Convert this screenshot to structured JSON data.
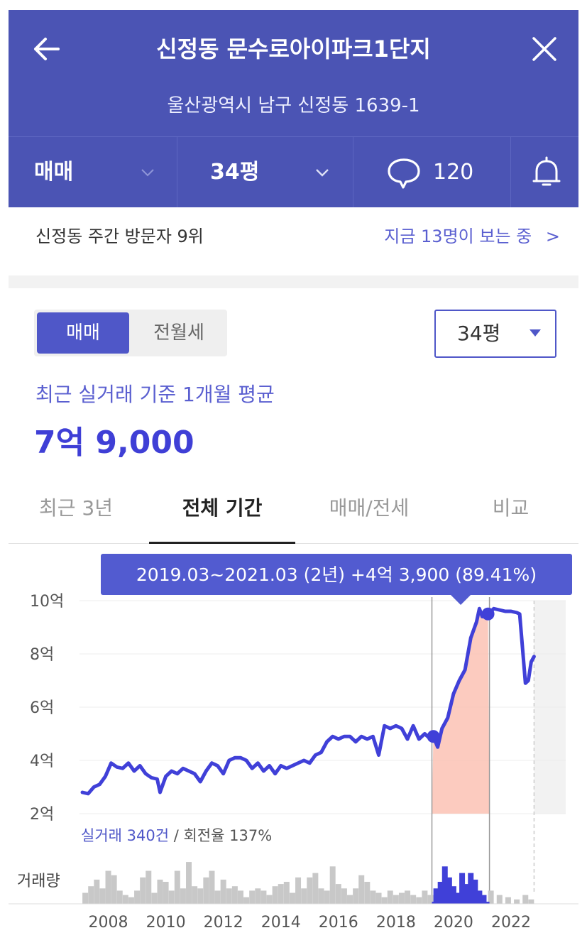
{
  "header": {
    "title": "신정동 문수로아이파크1단지",
    "address": "울산광역시 남구 신정동 1639-1",
    "bar": {
      "trade_type": "매매",
      "size": "34평",
      "comment_count": "120"
    }
  },
  "visitor": {
    "rank_text": "신정동 주간 방문자 9위",
    "watching_text": "지금 13명이 보는 중",
    "chevron": ">"
  },
  "controls": {
    "toggle_on": "매매",
    "toggle_off": "전월세",
    "dropdown_value": "34평"
  },
  "summary": {
    "label": "최근 실거래 기준 1개월 평균",
    "price": "7억 9,000"
  },
  "tabs": [
    {
      "label": "최근 3년",
      "active": false
    },
    {
      "label": "전체 기간",
      "active": true
    },
    {
      "label": "매매/전세",
      "active": false
    },
    {
      "label": "비교",
      "active": false
    }
  ],
  "colors": {
    "accent": "#4b54b4",
    "line": "#4040d8",
    "highlight": "#fbc2b4",
    "volume": "#c8c8c8",
    "volume_highlight": "#4040d8"
  },
  "chart_data": {
    "type": "line",
    "tooltip": "2019.03~2021.03 (2년)  +4억 3,900 (89.41%)",
    "y_ticks": [
      "10억",
      "8억",
      "6억",
      "4억",
      "2억"
    ],
    "y_tick_values": [
      10,
      8,
      6,
      4,
      2
    ],
    "x_ticks": [
      "2008",
      "2010",
      "2012",
      "2014",
      "2016",
      "2018",
      "2020",
      "2022"
    ],
    "x_tick_values": [
      2008,
      2010,
      2012,
      2014,
      2016,
      2018,
      2020,
      2022
    ],
    "ylim": [
      2,
      10
    ],
    "xlim": [
      2007.0,
      2023.9
    ],
    "grid": true,
    "summary_label": "실거래 340건",
    "summary_sep": " / 회전율 137%",
    "volume_label": "거래량",
    "highlight_range": [
      2019.25,
      2021.25
    ],
    "forecast_start": 2022.8,
    "series": [
      {
        "points": [
          [
            2007.1,
            2.8
          ],
          [
            2007.3,
            2.75
          ],
          [
            2007.5,
            3.0
          ],
          [
            2007.7,
            3.1
          ],
          [
            2007.9,
            3.4
          ],
          [
            2008.1,
            3.9
          ],
          [
            2008.3,
            3.75
          ],
          [
            2008.5,
            3.7
          ],
          [
            2008.7,
            3.9
          ],
          [
            2008.9,
            3.6
          ],
          [
            2009.1,
            3.8
          ],
          [
            2009.3,
            3.5
          ],
          [
            2009.5,
            3.35
          ],
          [
            2009.7,
            3.3
          ],
          [
            2009.8,
            2.8
          ],
          [
            2010.0,
            3.4
          ],
          [
            2010.2,
            3.6
          ],
          [
            2010.4,
            3.5
          ],
          [
            2010.6,
            3.7
          ],
          [
            2010.8,
            3.6
          ],
          [
            2011.0,
            3.5
          ],
          [
            2011.2,
            3.2
          ],
          [
            2011.4,
            3.6
          ],
          [
            2011.6,
            3.9
          ],
          [
            2011.8,
            3.8
          ],
          [
            2012.0,
            3.5
          ],
          [
            2012.2,
            4.0
          ],
          [
            2012.4,
            4.1
          ],
          [
            2012.6,
            4.1
          ],
          [
            2012.8,
            4.0
          ],
          [
            2013.0,
            3.7
          ],
          [
            2013.2,
            3.9
          ],
          [
            2013.4,
            3.6
          ],
          [
            2013.6,
            3.8
          ],
          [
            2013.8,
            3.5
          ],
          [
            2014.0,
            3.8
          ],
          [
            2014.2,
            3.7
          ],
          [
            2014.4,
            3.8
          ],
          [
            2014.6,
            3.9
          ],
          [
            2014.8,
            4.0
          ],
          [
            2015.0,
            3.9
          ],
          [
            2015.2,
            4.2
          ],
          [
            2015.4,
            4.3
          ],
          [
            2015.6,
            4.7
          ],
          [
            2015.8,
            4.9
          ],
          [
            2016.0,
            4.8
          ],
          [
            2016.2,
            4.9
          ],
          [
            2016.4,
            4.9
          ],
          [
            2016.6,
            4.7
          ],
          [
            2016.8,
            4.9
          ],
          [
            2017.0,
            4.8
          ],
          [
            2017.2,
            4.9
          ],
          [
            2017.4,
            4.2
          ],
          [
            2017.6,
            5.3
          ],
          [
            2017.8,
            5.2
          ],
          [
            2018.0,
            5.3
          ],
          [
            2018.2,
            5.2
          ],
          [
            2018.4,
            4.8
          ],
          [
            2018.6,
            5.3
          ],
          [
            2018.8,
            4.8
          ],
          [
            2019.0,
            5.0
          ],
          [
            2019.2,
            4.8
          ],
          [
            2019.3,
            4.9
          ],
          [
            2019.45,
            4.5
          ],
          [
            2019.6,
            5.2
          ],
          [
            2019.8,
            5.6
          ],
          [
            2020.0,
            6.5
          ],
          [
            2020.2,
            7.0
          ],
          [
            2020.4,
            7.4
          ],
          [
            2020.6,
            8.6
          ],
          [
            2020.8,
            9.2
          ],
          [
            2020.9,
            9.7
          ],
          [
            2021.0,
            9.4
          ],
          [
            2021.2,
            9.5
          ],
          [
            2021.4,
            9.7
          ],
          [
            2021.6,
            9.65
          ],
          [
            2021.8,
            9.6
          ],
          [
            2022.0,
            9.6
          ],
          [
            2022.2,
            9.55
          ],
          [
            2022.3,
            9.5
          ],
          [
            2022.4,
            8.2
          ],
          [
            2022.5,
            6.9
          ],
          [
            2022.6,
            7.0
          ],
          [
            2022.7,
            7.7
          ],
          [
            2022.8,
            7.9
          ]
        ]
      }
    ],
    "volume": [
      {
        "x": 2007.2,
        "h": 0.25
      },
      {
        "x": 2007.4,
        "h": 0.4
      },
      {
        "x": 2007.6,
        "h": 0.55
      },
      {
        "x": 2007.8,
        "h": 0.35
      },
      {
        "x": 2008.0,
        "h": 0.75
      },
      {
        "x": 2008.2,
        "h": 0.65
      },
      {
        "x": 2008.4,
        "h": 0.3
      },
      {
        "x": 2008.6,
        "h": 0.2
      },
      {
        "x": 2008.8,
        "h": 0.15
      },
      {
        "x": 2009.0,
        "h": 0.3
      },
      {
        "x": 2009.2,
        "h": 0.6
      },
      {
        "x": 2009.4,
        "h": 0.75
      },
      {
        "x": 2009.6,
        "h": 0.25
      },
      {
        "x": 2009.8,
        "h": 0.55
      },
      {
        "x": 2010.0,
        "h": 0.5
      },
      {
        "x": 2010.2,
        "h": 0.3
      },
      {
        "x": 2010.4,
        "h": 0.75
      },
      {
        "x": 2010.6,
        "h": 0.35
      },
      {
        "x": 2010.8,
        "h": 0.95
      },
      {
        "x": 2011.0,
        "h": 0.4
      },
      {
        "x": 2011.2,
        "h": 0.35
      },
      {
        "x": 2011.4,
        "h": 0.6
      },
      {
        "x": 2011.6,
        "h": 0.75
      },
      {
        "x": 2011.8,
        "h": 0.3
      },
      {
        "x": 2012.0,
        "h": 0.55
      },
      {
        "x": 2012.2,
        "h": 0.35
      },
      {
        "x": 2012.4,
        "h": 0.4
      },
      {
        "x": 2012.6,
        "h": 0.3
      },
      {
        "x": 2012.8,
        "h": 0.15
      },
      {
        "x": 2013.0,
        "h": 0.3
      },
      {
        "x": 2013.2,
        "h": 0.35
      },
      {
        "x": 2013.4,
        "h": 0.3
      },
      {
        "x": 2013.6,
        "h": 0.2
      },
      {
        "x": 2013.8,
        "h": 0.4
      },
      {
        "x": 2014.0,
        "h": 0.45
      },
      {
        "x": 2014.2,
        "h": 0.5
      },
      {
        "x": 2014.4,
        "h": 0.25
      },
      {
        "x": 2014.6,
        "h": 0.6
      },
      {
        "x": 2014.8,
        "h": 0.35
      },
      {
        "x": 2015.0,
        "h": 0.6
      },
      {
        "x": 2015.2,
        "h": 0.7
      },
      {
        "x": 2015.4,
        "h": 0.35
      },
      {
        "x": 2015.6,
        "h": 0.3
      },
      {
        "x": 2015.8,
        "h": 0.85
      },
      {
        "x": 2016.0,
        "h": 0.45
      },
      {
        "x": 2016.2,
        "h": 0.35
      },
      {
        "x": 2016.4,
        "h": 0.2
      },
      {
        "x": 2016.6,
        "h": 0.35
      },
      {
        "x": 2016.8,
        "h": 0.65
      },
      {
        "x": 2017.0,
        "h": 0.5
      },
      {
        "x": 2017.2,
        "h": 0.3
      },
      {
        "x": 2017.4,
        "h": 0.25
      },
      {
        "x": 2017.6,
        "h": 0.15
      },
      {
        "x": 2017.8,
        "h": 0.3
      },
      {
        "x": 2018.0,
        "h": 0.2
      },
      {
        "x": 2018.2,
        "h": 0.25
      },
      {
        "x": 2018.4,
        "h": 0.3
      },
      {
        "x": 2018.6,
        "h": 0.2
      },
      {
        "x": 2018.8,
        "h": 0.15
      },
      {
        "x": 2019.0,
        "h": 0.3
      },
      {
        "x": 2019.2,
        "h": 0.2
      },
      {
        "x": 2019.4,
        "h": 0.35
      },
      {
        "x": 2019.55,
        "h": 0.5
      },
      {
        "x": 2019.7,
        "h": 0.85
      },
      {
        "x": 2019.85,
        "h": 0.6
      },
      {
        "x": 2020.0,
        "h": 0.4
      },
      {
        "x": 2020.15,
        "h": 0.25
      },
      {
        "x": 2020.3,
        "h": 0.7
      },
      {
        "x": 2020.45,
        "h": 0.45
      },
      {
        "x": 2020.6,
        "h": 0.7
      },
      {
        "x": 2020.75,
        "h": 0.55
      },
      {
        "x": 2020.9,
        "h": 0.3
      },
      {
        "x": 2021.05,
        "h": 0.2
      },
      {
        "x": 2021.3,
        "h": 0.3
      },
      {
        "x": 2021.6,
        "h": 0.2
      },
      {
        "x": 2021.9,
        "h": 0.15
      },
      {
        "x": 2022.2,
        "h": 0.1
      },
      {
        "x": 2022.5,
        "h": 0.2
      },
      {
        "x": 2022.7,
        "h": 0.1
      }
    ]
  }
}
